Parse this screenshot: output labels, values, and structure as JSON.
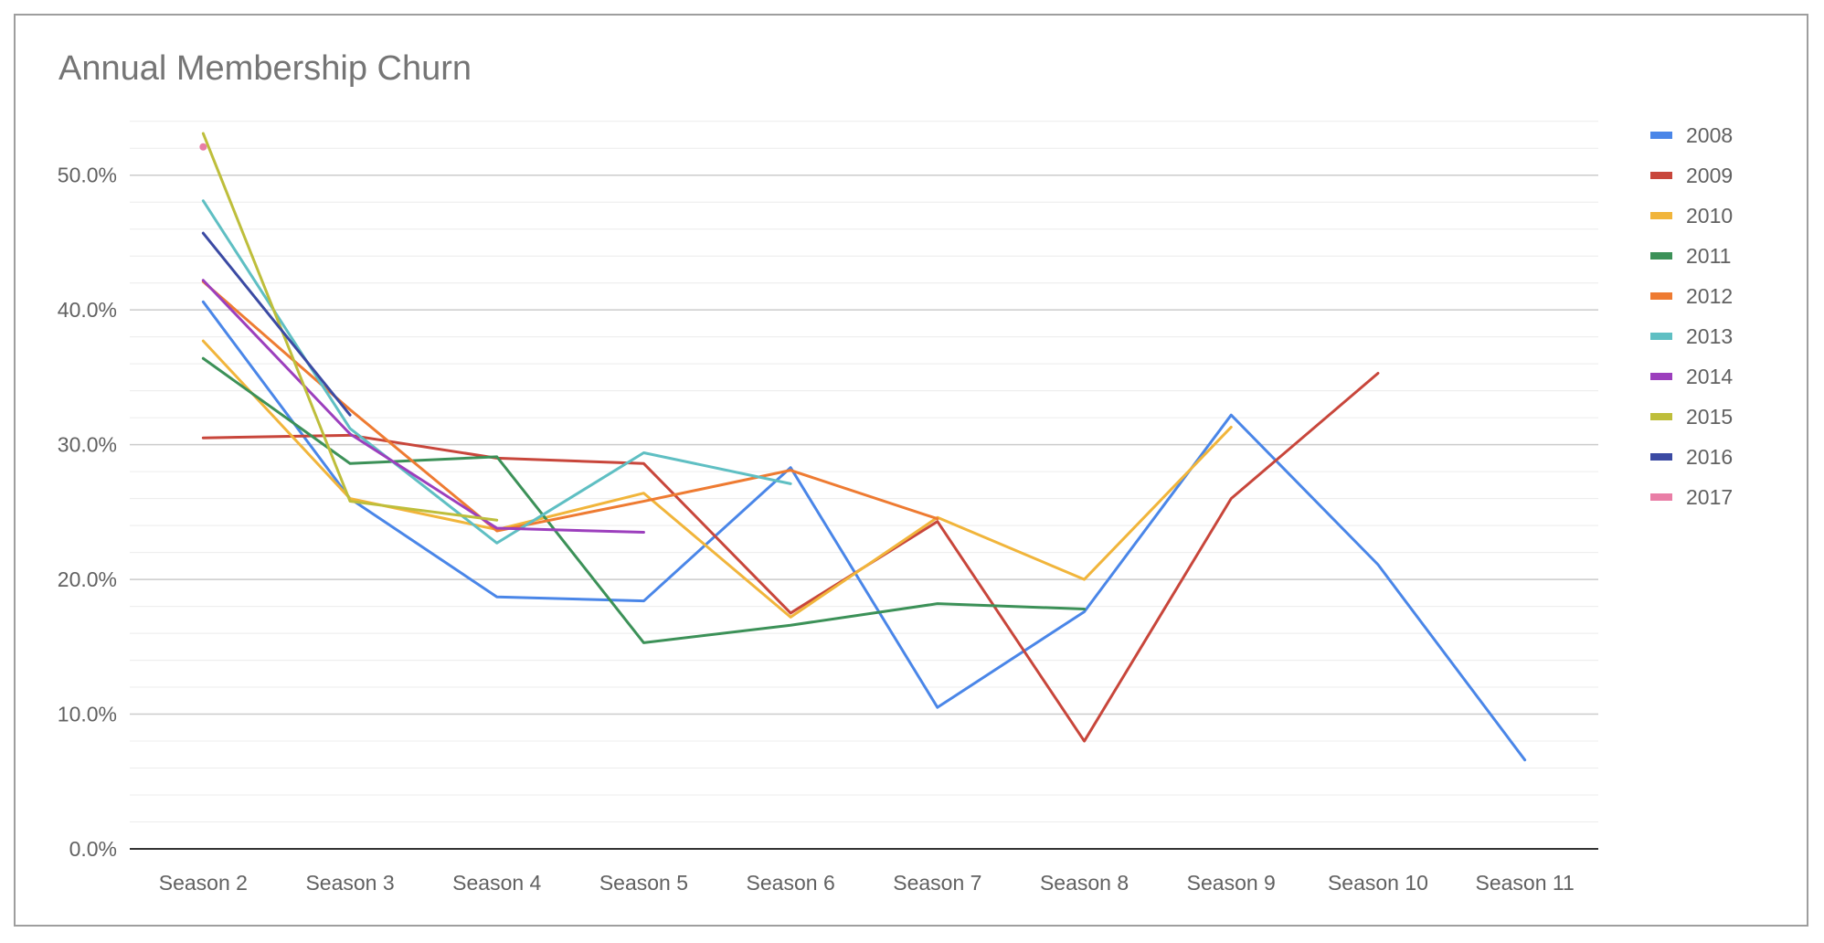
{
  "chart_data": {
    "type": "line",
    "title": "Annual Membership Churn",
    "xlabel": "",
    "ylabel": "",
    "categories": [
      "Season 2",
      "Season 3",
      "Season 4",
      "Season 5",
      "Season 6",
      "Season 7",
      "Season 8",
      "Season 9",
      "Season 10",
      "Season 11"
    ],
    "ylim": [
      0,
      0.55
    ],
    "yticks": [
      0,
      0.1,
      0.2,
      0.3,
      0.4,
      0.5
    ],
    "ytick_labels": [
      "0.0%",
      "10.0%",
      "20.0%",
      "30.0%",
      "40.0%",
      "50.0%"
    ],
    "minor_gridlines_per_major": 5,
    "grid": true,
    "legend_position": "right",
    "series": [
      {
        "name": "2008",
        "color": "#4a86e8",
        "values": [
          0.406,
          0.26,
          0.187,
          0.184,
          0.283,
          0.105,
          0.176,
          0.322,
          0.211,
          0.066
        ]
      },
      {
        "name": "2009",
        "color": "#c8463b",
        "values": [
          0.305,
          0.307,
          0.29,
          0.286,
          0.175,
          0.243,
          0.08,
          0.26,
          0.353,
          null
        ]
      },
      {
        "name": "2010",
        "color": "#f1b53b",
        "values": [
          0.377,
          0.26,
          0.237,
          0.264,
          0.172,
          0.246,
          0.2,
          0.313,
          null,
          null
        ]
      },
      {
        "name": "2011",
        "color": "#3c9158",
        "values": [
          0.364,
          0.286,
          0.291,
          0.153,
          0.166,
          0.182,
          0.178,
          null,
          null,
          null
        ]
      },
      {
        "name": "2012",
        "color": "#ee7b32",
        "values": [
          0.421,
          0.326,
          0.236,
          0.258,
          0.281,
          0.245,
          null,
          null,
          null,
          null
        ]
      },
      {
        "name": "2013",
        "color": "#5fbfc3",
        "values": [
          0.481,
          0.312,
          0.227,
          0.294,
          0.271,
          null,
          null,
          null,
          null,
          null
        ]
      },
      {
        "name": "2014",
        "color": "#9c3fbd",
        "values": [
          0.422,
          0.308,
          0.238,
          0.235,
          null,
          null,
          null,
          null,
          null,
          null
        ]
      },
      {
        "name": "2015",
        "color": "#bebe3b",
        "values": [
          0.531,
          0.258,
          0.244,
          null,
          null,
          null,
          null,
          null,
          null,
          null
        ]
      },
      {
        "name": "2016",
        "color": "#3b4aa3",
        "values": [
          0.457,
          0.322,
          null,
          null,
          null,
          null,
          null,
          null,
          null,
          null
        ]
      },
      {
        "name": "2017",
        "color": "#e97ea6",
        "values": [
          0.521,
          null,
          null,
          null,
          null,
          null,
          null,
          null,
          null,
          null
        ]
      }
    ]
  }
}
